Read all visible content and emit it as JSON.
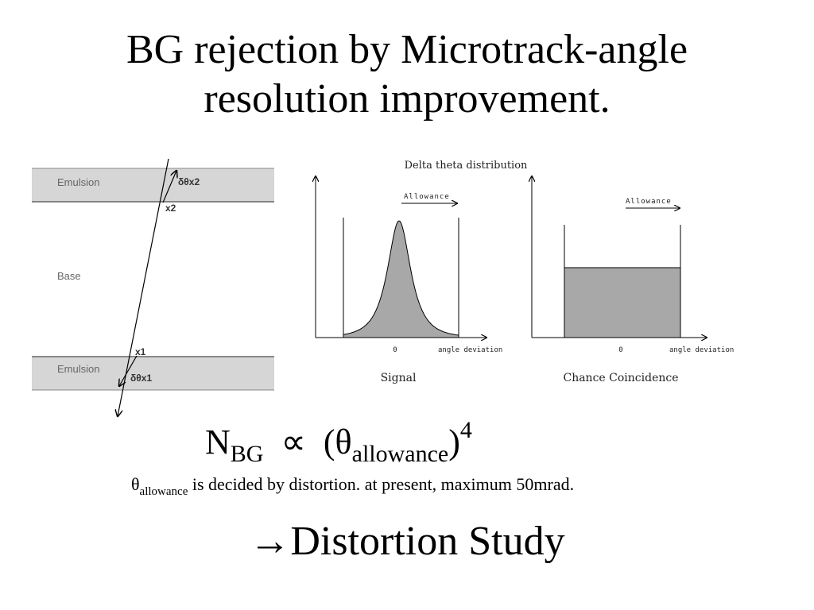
{
  "title": {
    "line1": "BG rejection by Microtrack-angle",
    "line2": "resolution improvement."
  },
  "diagram": {
    "emulsion_top": "Emulsion",
    "emulsion_bottom": "Emulsion",
    "base": "Base",
    "dtheta_x2": "δθx2",
    "x2": "x2",
    "x1": "x1",
    "dtheta_x1": "δθx1"
  },
  "chart_data": [
    {
      "type": "area",
      "title": "Delta theta distribution",
      "name": "Signal",
      "allowance_label": "Allowance",
      "x_tick": "0",
      "xlabel": "angle deviation",
      "shape": "gaussian peak at 0, inside allowance window"
    },
    {
      "type": "bar",
      "name": "Chance Coincidence",
      "allowance_label": "Allowance",
      "x_tick": "0",
      "xlabel": "angle deviation",
      "shape": "flat distribution across allowance window"
    }
  ],
  "formula": {
    "n": "N",
    "n_sub": "BG",
    "propto": "∝",
    "open": "(θ",
    "theta_sub": "allowance",
    "close": ")",
    "power": "4"
  },
  "note": {
    "theta": "θ",
    "theta_sub": "allowance",
    "text": " is decided by distortion. at present, maximum 50mrad."
  },
  "conclusion": {
    "arrow": "→",
    "text": "Distortion Study"
  }
}
